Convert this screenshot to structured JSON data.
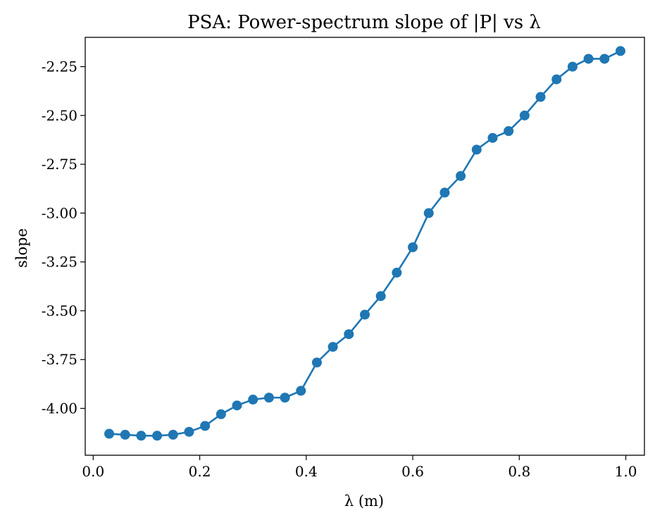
{
  "chart_data": {
    "type": "line",
    "title": "PSA: Power-spectrum slope of |P| vs λ",
    "xlabel": "λ (m)",
    "ylabel": "slope",
    "xlim": [
      -0.015,
      1.035
    ],
    "ylim": [
      -4.24,
      -2.1
    ],
    "xticks": [
      0.0,
      0.2,
      0.4,
      0.6,
      0.8,
      1.0
    ],
    "xtick_labels": [
      "0.0",
      "0.2",
      "0.4",
      "0.6",
      "0.8",
      "1.0"
    ],
    "yticks": [
      -4.0,
      -3.75,
      -3.5,
      -3.25,
      -3.0,
      -2.75,
      -2.5,
      -2.25
    ],
    "ytick_labels": [
      "-4.00",
      "-3.75",
      "-3.50",
      "-3.25",
      "-3.00",
      "-2.75",
      "-2.50",
      "-2.25"
    ],
    "grid": false,
    "color": "#1f77b4",
    "marker": "circle",
    "series": [
      {
        "x": [
          0.03,
          0.06,
          0.09,
          0.12,
          0.15,
          0.18,
          0.21,
          0.24,
          0.27,
          0.3,
          0.33,
          0.36,
          0.39,
          0.42,
          0.45,
          0.48,
          0.51,
          0.54,
          0.57,
          0.6,
          0.63,
          0.66,
          0.69,
          0.72,
          0.75,
          0.78,
          0.81,
          0.84,
          0.87,
          0.9,
          0.93,
          0.96,
          0.99
        ],
        "y": [
          -4.13,
          -4.135,
          -4.14,
          -4.14,
          -4.135,
          -4.12,
          -4.09,
          -4.03,
          -3.985,
          -3.955,
          -3.945,
          -3.945,
          -3.91,
          -3.765,
          -3.685,
          -3.62,
          -3.52,
          -3.425,
          -3.305,
          -3.175,
          -3.0,
          -2.895,
          -2.81,
          -2.675,
          -2.615,
          -2.58,
          -2.5,
          -2.405,
          -2.315,
          -2.25,
          -2.21,
          -2.21,
          -2.17
        ]
      }
    ]
  }
}
